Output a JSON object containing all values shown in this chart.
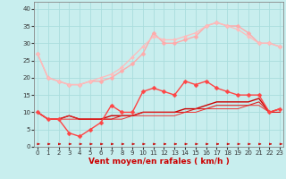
{
  "xlabel": "Vent moyen/en rafales ( km/h )",
  "background_color": "#c8eeee",
  "grid_color": "#aadddd",
  "x": [
    0,
    1,
    2,
    3,
    4,
    5,
    6,
    7,
    8,
    9,
    10,
    11,
    12,
    13,
    14,
    15,
    16,
    17,
    18,
    19,
    20,
    21,
    22,
    23
  ],
  "series": [
    {
      "y": [
        27,
        20,
        19,
        18,
        18,
        19,
        19,
        20,
        22,
        24,
        27,
        33,
        30,
        30,
        31,
        32,
        35,
        36,
        35,
        35,
        33,
        30,
        30,
        29
      ],
      "color": "#ffaaaa",
      "marker": "D",
      "markersize": 2.5,
      "linewidth": 1.0,
      "zorder": 2
    },
    {
      "y": [
        27,
        20,
        19,
        18,
        18,
        19,
        20,
        21,
        23,
        26,
        29,
        32,
        31,
        31,
        32,
        33,
        35,
        36,
        35,
        34,
        32,
        30,
        30,
        29
      ],
      "color": "#ffbbbb",
      "marker": "D",
      "markersize": 2.0,
      "linewidth": 0.9,
      "zorder": 2
    },
    {
      "y": [
        10,
        8,
        8,
        4,
        3,
        5,
        7,
        12,
        10,
        10,
        16,
        17,
        16,
        15,
        19,
        18,
        19,
        17,
        16,
        15,
        15,
        15,
        10,
        11
      ],
      "color": "#ff4444",
      "marker": "D",
      "markersize": 2.5,
      "linewidth": 1.0,
      "zorder": 4
    },
    {
      "y": [
        10,
        8,
        8,
        9,
        8,
        8,
        8,
        9,
        9,
        9,
        10,
        10,
        10,
        10,
        11,
        11,
        12,
        13,
        13,
        13,
        13,
        14,
        10,
        11
      ],
      "color": "#cc0000",
      "marker": "None",
      "markersize": 0,
      "linewidth": 1.0,
      "zorder": 3
    },
    {
      "y": [
        10,
        8,
        8,
        9,
        8,
        8,
        8,
        8,
        9,
        9,
        10,
        10,
        10,
        10,
        10,
        11,
        11,
        12,
        12,
        12,
        12,
        13,
        10,
        10
      ],
      "color": "#dd2222",
      "marker": "None",
      "markersize": 0,
      "linewidth": 0.8,
      "zorder": 3
    },
    {
      "y": [
        10,
        8,
        8,
        8,
        8,
        8,
        8,
        8,
        8,
        9,
        9,
        9,
        9,
        9,
        10,
        10,
        11,
        11,
        11,
        11,
        12,
        12,
        10,
        10
      ],
      "color": "#ee3333",
      "marker": "None",
      "markersize": 0,
      "linewidth": 0.7,
      "zorder": 2
    }
  ],
  "ylim": [
    0,
    42
  ],
  "xlim": [
    -0.3,
    23.3
  ],
  "yticks": [
    0,
    5,
    10,
    15,
    20,
    25,
    30,
    35,
    40
  ],
  "xticks": [
    0,
    1,
    2,
    3,
    4,
    5,
    6,
    7,
    8,
    9,
    10,
    11,
    12,
    13,
    14,
    15,
    16,
    17,
    18,
    19,
    20,
    21,
    22,
    23
  ],
  "tick_fontsize": 5.0,
  "xlabel_fontsize": 6.5,
  "arrow_color": "#cc0000",
  "spine_color": "#888888"
}
